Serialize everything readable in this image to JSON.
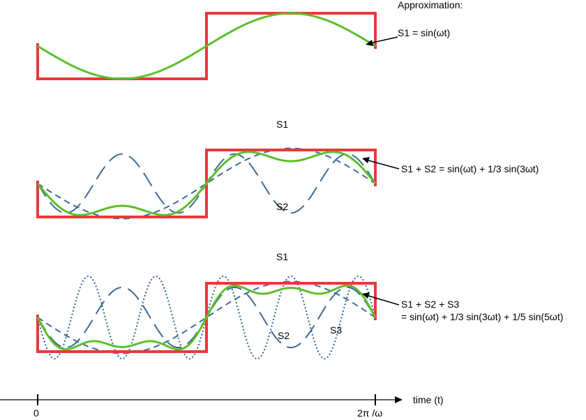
{
  "header": {
    "title": "Approximation:"
  },
  "colors": {
    "square": "#e8393a",
    "approx": "#5cbf2a",
    "approx_light": "#b9e89d",
    "harmonic": "#3e6a96",
    "axis": "#000000"
  },
  "panels": [
    {
      "id": "panel-1",
      "label_lines": [
        "S1 = sin(ωt)"
      ],
      "harmonics": [
        1
      ],
      "component_labels": []
    },
    {
      "id": "panel-2",
      "label_lines": [
        "S1 + S2 = sin(ωt) + 1/3 sin(3ωt)"
      ],
      "harmonics": [
        1,
        3
      ],
      "component_labels": [
        "S1",
        "S2"
      ]
    },
    {
      "id": "panel-3",
      "label_lines": [
        "S1 + S2 + S3",
        "= sin(ωt) + 1/3 sin(3ωt) + 1/5 sin(5ωt)"
      ],
      "harmonics": [
        1,
        3,
        5
      ],
      "component_labels": [
        "S1",
        "S2",
        "S3"
      ]
    }
  ],
  "axis": {
    "label": "time (t)",
    "tick_start": "0",
    "tick_end": "2π /ω"
  }
}
